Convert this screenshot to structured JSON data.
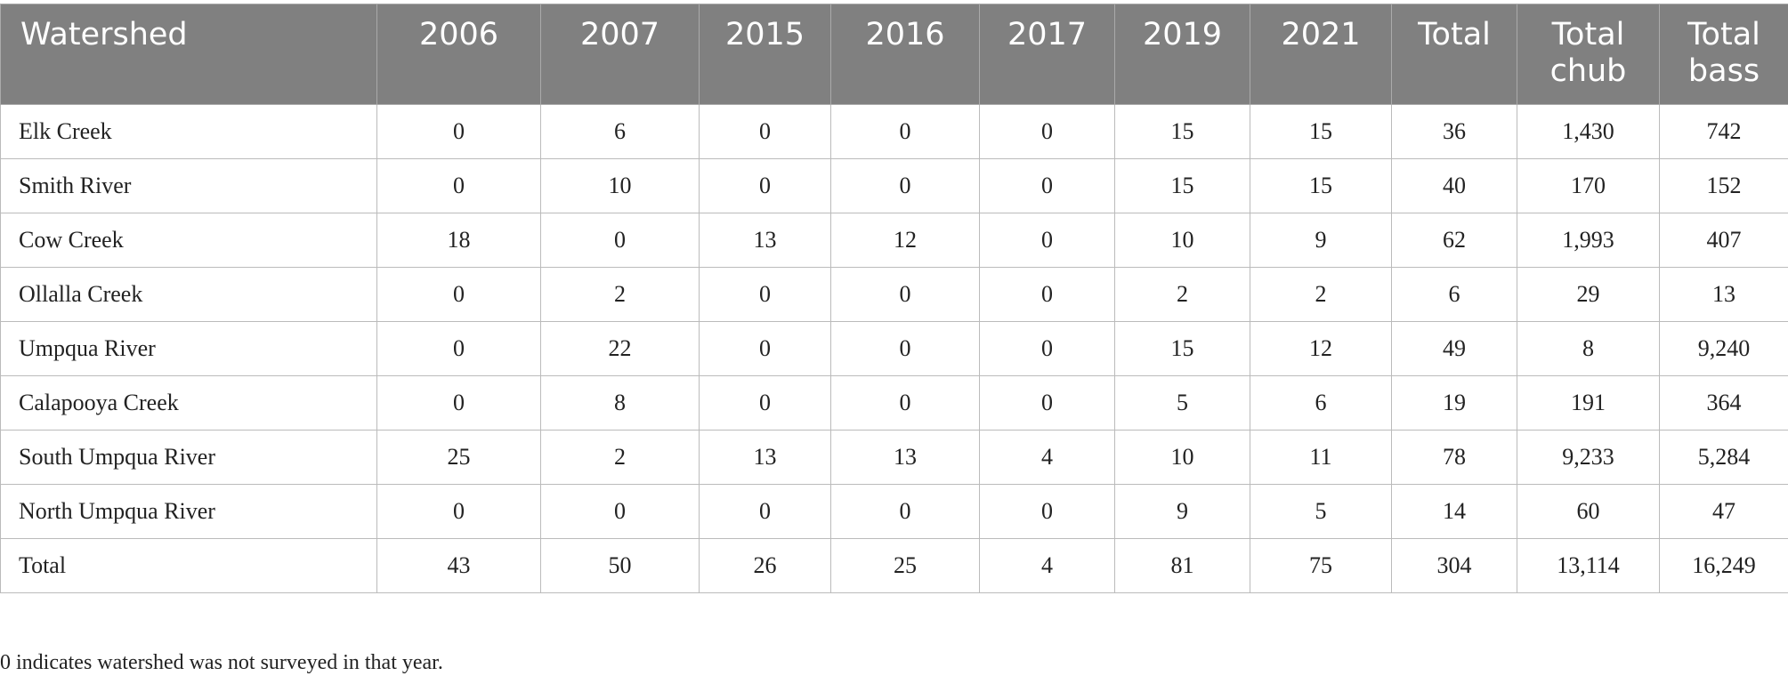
{
  "table": {
    "header": [
      "Watershed",
      "2006",
      "2007",
      "2015",
      "2016",
      "2017",
      "2019",
      "2021",
      "Total",
      "Total chub",
      "Total bass"
    ],
    "rows": [
      [
        "Elk Creek",
        "0",
        "6",
        "0",
        "0",
        "0",
        "15",
        "15",
        "36",
        "1,430",
        "742"
      ],
      [
        "Smith River",
        "0",
        "10",
        "0",
        "0",
        "0",
        "15",
        "15",
        "40",
        "170",
        "152"
      ],
      [
        "Cow Creek",
        "18",
        "0",
        "13",
        "12",
        "0",
        "10",
        "9",
        "62",
        "1,993",
        "407"
      ],
      [
        "Ollalla Creek",
        "0",
        "2",
        "0",
        "0",
        "0",
        "2",
        "2",
        "6",
        "29",
        "13"
      ],
      [
        "Umpqua River",
        "0",
        "22",
        "0",
        "0",
        "0",
        "15",
        "12",
        "49",
        "8",
        "9,240"
      ],
      [
        "Calapooya Creek",
        "0",
        "8",
        "0",
        "0",
        "0",
        "5",
        "6",
        "19",
        "191",
        "364"
      ],
      [
        "South Umpqua River",
        "25",
        "2",
        "13",
        "13",
        "4",
        "10",
        "11",
        "78",
        "9,233",
        "5,284"
      ],
      [
        "North Umpqua River",
        "0",
        "0",
        "0",
        "0",
        "0",
        "9",
        "5",
        "14",
        "60",
        "47"
      ],
      [
        "Total",
        "43",
        "50",
        "26",
        "25",
        "4",
        "81",
        "75",
        "304",
        "13,114",
        "16,249"
      ]
    ]
  },
  "footnote": "0 indicates watershed was not surveyed in that year."
}
